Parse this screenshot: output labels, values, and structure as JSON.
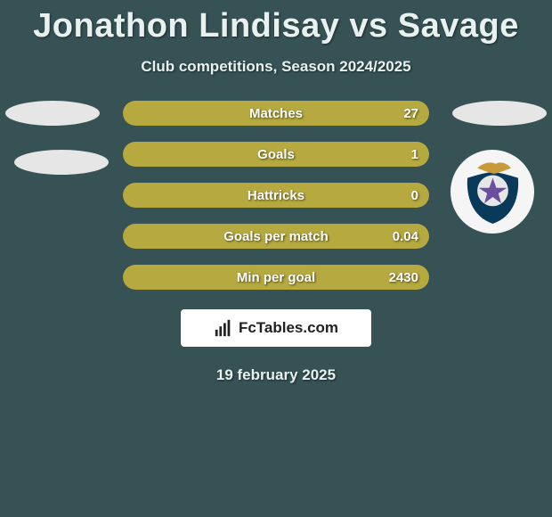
{
  "header": {
    "title": "Jonathon Lindisay vs Savage",
    "subtitle": "Club competitions, Season 2024/2025"
  },
  "stats": [
    {
      "label": "Matches",
      "value": "27",
      "fill_pct": 100
    },
    {
      "label": "Goals",
      "value": "1",
      "fill_pct": 100
    },
    {
      "label": "Hattricks",
      "value": "0",
      "fill_pct": 100
    },
    {
      "label": "Goals per match",
      "value": "0.04",
      "fill_pct": 100
    },
    {
      "label": "Min per goal",
      "value": "2430",
      "fill_pct": 100
    }
  ],
  "style": {
    "row_bg": "#2a4143",
    "fill_color": "#b5a93f",
    "page_bg": "#365254",
    "text_color": "#ffffff",
    "ellipse_color": "#e6e6e6"
  },
  "brand": {
    "label": "FcTables.com"
  },
  "footer": {
    "date": "19 february 2025"
  }
}
